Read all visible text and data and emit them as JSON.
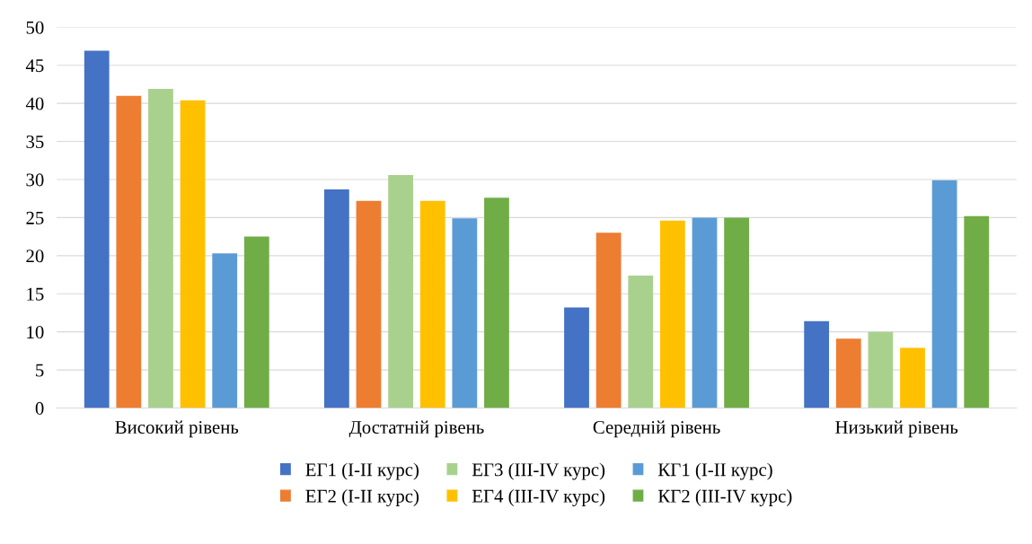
{
  "chart_data": {
    "type": "bar",
    "categories": [
      "Високий рівень",
      "Достатній рівень",
      "Середній рівень",
      "Низький рівень"
    ],
    "series": [
      {
        "name": "ЕГ1 (І-ІІ курс)",
        "color": "#4472c4",
        "values": [
          46.9,
          28.7,
          13.2,
          11.4
        ]
      },
      {
        "name": "ЕГ2 (І-ІІ курс)",
        "color": "#ed7d31",
        "values": [
          41.0,
          27.2,
          23.0,
          9.1
        ]
      },
      {
        "name": "ЕГ3 (ІІІ-ІV курс)",
        "color": "#a9d18e",
        "values": [
          41.9,
          30.6,
          17.4,
          10.0
        ]
      },
      {
        "name": "ЕГ4 (ІІІ-ІV курс)",
        "color": "#ffc000",
        "values": [
          40.4,
          27.2,
          24.6,
          7.9
        ]
      },
      {
        "name": "КГ1 (І-ІІ курс)",
        "color": "#5b9bd5",
        "values": [
          20.3,
          24.9,
          25.0,
          29.9
        ]
      },
      {
        "name": "КГ2 (ІІІ-ІV курс)",
        "color": "#70ad47",
        "values": [
          22.5,
          27.6,
          25.0,
          25.2
        ]
      }
    ],
    "ylim": [
      0,
      50
    ],
    "yticks": [
      0,
      5,
      10,
      15,
      20,
      25,
      30,
      35,
      40,
      45,
      50
    ],
    "grid": "y",
    "legend": "bottom"
  }
}
